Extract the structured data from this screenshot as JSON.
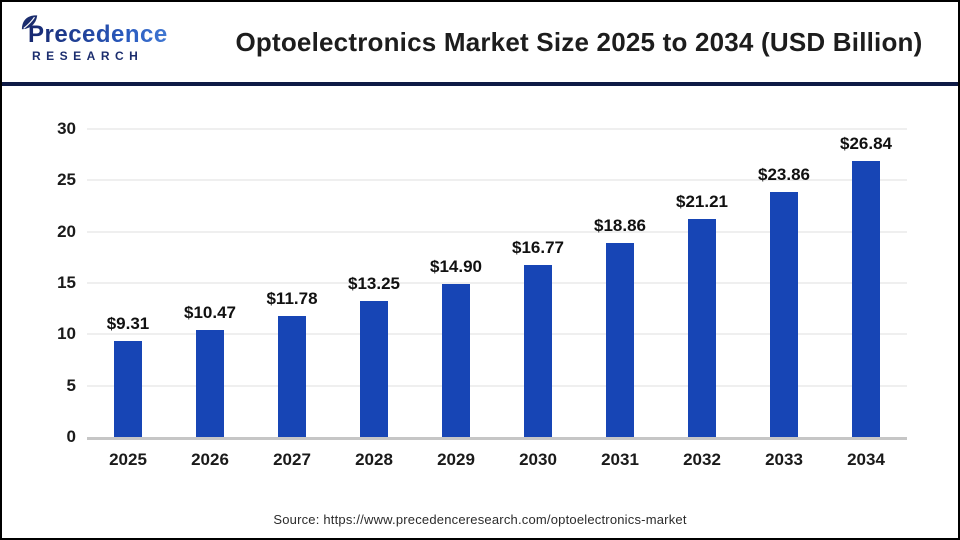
{
  "brand": {
    "name": "Precedence",
    "subname": "RESEARCH"
  },
  "header": {
    "title": "Optoelectronics Market Size 2025 to 2034 (USD Billion)"
  },
  "chart_data": {
    "type": "bar",
    "title": "Optoelectronics Market Size 2025 to 2034 (USD Billion)",
    "categories": [
      "2025",
      "2026",
      "2027",
      "2028",
      "2029",
      "2030",
      "2031",
      "2032",
      "2033",
      "2034"
    ],
    "values": [
      9.31,
      10.47,
      11.78,
      13.25,
      14.9,
      16.77,
      18.86,
      21.21,
      23.86,
      26.84
    ],
    "value_labels": [
      "$9.31",
      "$10.47",
      "$11.78",
      "$13.25",
      "$14.90",
      "$16.77",
      "$18.86",
      "$21.21",
      "$23.86",
      "$26.84"
    ],
    "xlabel": "",
    "ylabel": "",
    "ylim": [
      0,
      30
    ],
    "yticks": [
      0,
      5,
      10,
      15,
      20,
      25,
      30
    ],
    "grid": "horizontal",
    "legend": "none",
    "bar_color": "#1745b5"
  },
  "source": {
    "text": "Source: https://www.precedenceresearch.com/optoelectronics-market"
  },
  "colors": {
    "bar": "#1745b5",
    "header_divider": "#0e1a45",
    "gridline": "#efefef",
    "axis_line": "#c6c6c6",
    "brand_navy": "#1b2d6e",
    "brand_blue": "#4b8de0",
    "title_text": "#1d1d1d"
  }
}
